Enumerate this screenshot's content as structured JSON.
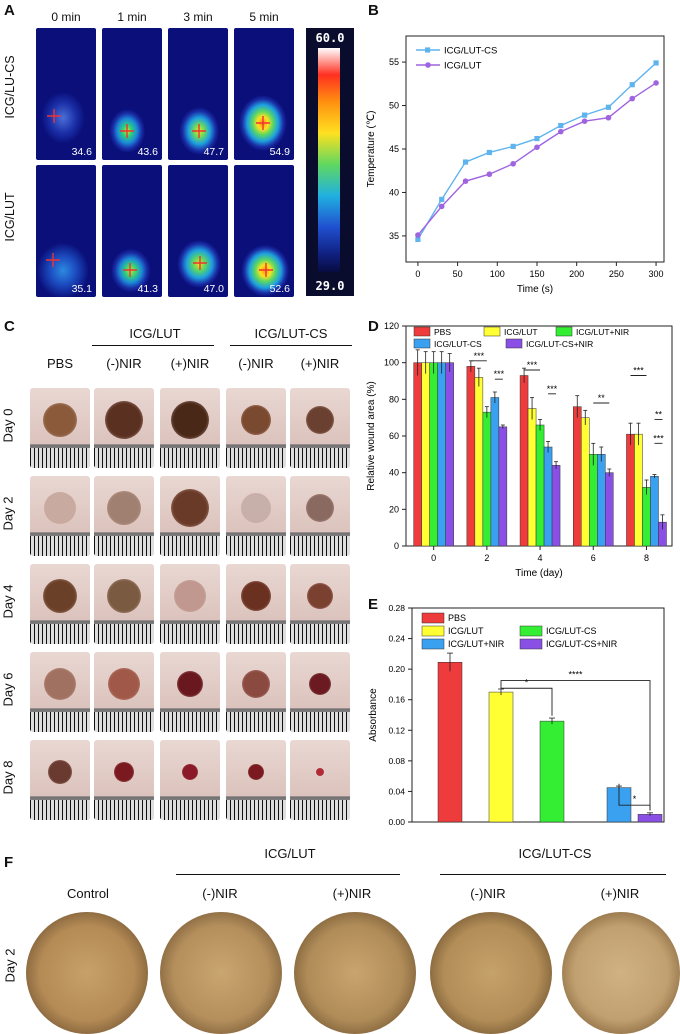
{
  "panels": {
    "A": "A",
    "B": "B",
    "C": "C",
    "D": "D",
    "E": "E",
    "F": "F"
  },
  "panel_a": {
    "time_labels": [
      "0 min",
      "1 min",
      "3 min",
      "5 min"
    ],
    "row_labels": [
      "ICG/LU-CS",
      "ICG/LUT"
    ],
    "temps_row1": [
      "34.6",
      "43.6",
      "47.7",
      "54.9"
    ],
    "temps_row2": [
      "35.1",
      "41.3",
      "47.0",
      "52.6"
    ],
    "scale_max": "60.0",
    "scale_min": "29.0"
  },
  "panel_c": {
    "group_labels": [
      "ICG/LUT",
      "ICG/LUT-CS"
    ],
    "col_labels": [
      "PBS",
      "(-)NIR",
      "(+)NIR",
      "(-)NIR",
      "(+)NIR"
    ],
    "row_labels": [
      "Day 0",
      "Day 2",
      "Day 4",
      "Day 6",
      "Day 8"
    ]
  },
  "panel_f": {
    "group_labels": [
      "ICG/LUT",
      "ICG/LUT-CS"
    ],
    "col_labels": [
      "Control",
      "(-)NIR",
      "(+)NIR",
      "(-)NIR",
      "(+)NIR"
    ],
    "row_label": "Day 2"
  },
  "colors": {
    "pbs": "#ee3b3b",
    "icg_lut": "#ffff33",
    "icg_lut_nir": "#33ee33",
    "icg_lut_cs": "#3aa0f0",
    "icg_lut_cs_nir": "#8a50e6",
    "line_cs": "#5fb4ee",
    "line_lut": "#a064e0"
  },
  "chart_data": [
    {
      "type": "line",
      "xlabel": "Time (s)",
      "ylabel": "Temperature (℃)",
      "xlim": [
        -15,
        310
      ],
      "ylim": [
        32,
        58
      ],
      "xticks": [
        0,
        50,
        100,
        150,
        200,
        250,
        300
      ],
      "yticks": [
        35,
        40,
        45,
        50,
        55
      ],
      "legend": "top-left",
      "x": [
        0,
        30,
        60,
        90,
        120,
        150,
        180,
        210,
        240,
        270,
        300
      ],
      "series": [
        {
          "name": "ICG/LUT-CS",
          "values": [
            34.6,
            39.2,
            43.5,
            44.6,
            45.3,
            46.2,
            47.7,
            48.9,
            49.8,
            52.4,
            54.9
          ]
        },
        {
          "name": "ICG/LUT",
          "values": [
            35.1,
            38.4,
            41.3,
            42.1,
            43.3,
            45.2,
            47.0,
            48.2,
            48.6,
            50.8,
            52.6
          ]
        }
      ]
    },
    {
      "type": "bar",
      "xlabel": "Time (day)",
      "ylabel": "Relative wound area (%)",
      "ylim": [
        0,
        120
      ],
      "yticks": [
        0,
        20,
        40,
        60,
        80,
        100,
        120
      ],
      "categories": [
        "0",
        "2",
        "4",
        "6",
        "8"
      ],
      "legend": "top",
      "series": [
        {
          "name": "PBS",
          "values": [
            100,
            98,
            93,
            76,
            61
          ],
          "errors": [
            7,
            3,
            4,
            6,
            6
          ]
        },
        {
          "name": "ICG/LUT",
          "values": [
            100,
            92,
            75,
            70,
            61
          ],
          "errors": [
            6,
            5,
            6,
            4,
            6
          ]
        },
        {
          "name": "ICG/LUT+NIR",
          "values": [
            100,
            73,
            66,
            50,
            32
          ],
          "errors": [
            6,
            3,
            3,
            6,
            4
          ]
        },
        {
          "name": "ICG/LUT-CS",
          "values": [
            100,
            81,
            54,
            50,
            38
          ],
          "errors": [
            6,
            3,
            3,
            4,
            1
          ]
        },
        {
          "name": "ICG/LUT-CS+NIR",
          "values": [
            100,
            65,
            44,
            40,
            13
          ],
          "errors": [
            5,
            1,
            2,
            2,
            4
          ]
        }
      ],
      "significance": [
        {
          "label": "***",
          "day": "2",
          "from": 0,
          "to": 2
        },
        {
          "label": "***",
          "day": "2",
          "from": 3,
          "to": 4
        },
        {
          "label": "***",
          "day": "4",
          "from": 0,
          "to": 2
        },
        {
          "label": "***",
          "day": "4",
          "from": 3,
          "to": 4
        },
        {
          "label": "**",
          "day": "6",
          "from": 2,
          "to": 4
        },
        {
          "label": "***",
          "day": "8",
          "from": 0,
          "to": 2
        },
        {
          "label": "**",
          "day": "8",
          "from": 3,
          "to": 4
        },
        {
          "label": "***",
          "day": "8",
          "from": 3,
          "to": 4
        }
      ]
    },
    {
      "type": "bar",
      "ylabel": "Absorbance",
      "ylim": [
        0,
        0.28
      ],
      "yticks": [
        "0.00",
        "0.04",
        "0.08",
        "0.12",
        "0.16",
        "0.20",
        "0.24",
        "0.28"
      ],
      "legend": "top",
      "series": [
        {
          "name": "PBS",
          "values": [
            0.209
          ],
          "errors": [
            0.012
          ]
        },
        {
          "name": "ICG/LUT",
          "values": [
            0.17
          ],
          "errors": [
            0.004
          ]
        },
        {
          "name": "ICG/LUT-CS",
          "values": [
            0.132
          ],
          "errors": [
            0.004
          ]
        },
        {
          "name": "ICG/LUT+NIR",
          "values": [
            0.045
          ],
          "errors": [
            0.002
          ]
        },
        {
          "name": "ICG/LUT-CS+NIR",
          "values": [
            0.01
          ],
          "errors": [
            0.002
          ]
        }
      ],
      "significance": [
        {
          "label": "*",
          "from": 1,
          "to": 2
        },
        {
          "label": "****",
          "from": 1,
          "to": 4
        },
        {
          "label": "*",
          "from": 3,
          "to": 4
        }
      ]
    }
  ]
}
